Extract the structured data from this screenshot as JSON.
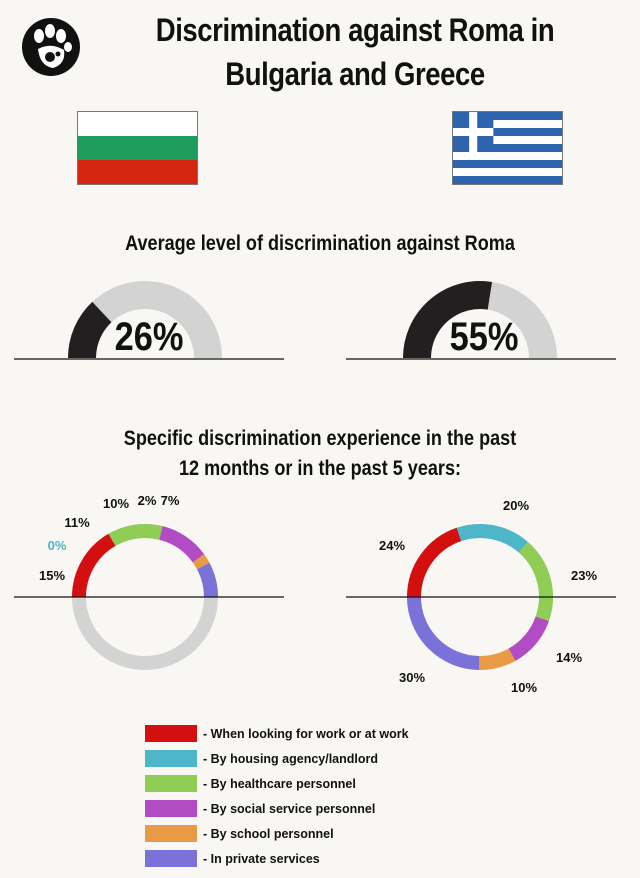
{
  "title_lines": [
    "Discrimination against Roma in",
    "Bulgaria and Greece"
  ],
  "logo": {
    "icon": "hands-logo-icon"
  },
  "flags": [
    {
      "name": "bulgaria-flag-icon",
      "colors": [
        "#ffffff",
        "#1f9d5c",
        "#d62612"
      ]
    },
    {
      "name": "greece-flag-icon",
      "colors": [
        "#2e63ad",
        "#ffffff"
      ]
    }
  ],
  "average_section": {
    "title": "Average level of discrimination against Roma"
  },
  "specific_section": {
    "title_lines": [
      "Specific discrimination experience in the past",
      "12 months or in the past 5 years:"
    ]
  },
  "legend": [
    {
      "label": "- When looking for work or at work",
      "color": "#d40f10"
    },
    {
      "label": "- By housing agency/landlord",
      "color": "#4db6c9"
    },
    {
      "label": "- By healthcare personnel",
      "color": "#8fcd55"
    },
    {
      "label": "- By social service personnel",
      "color": "#b24cc4"
    },
    {
      "label": "- By school personnel",
      "color": "#e89a44"
    },
    {
      "label": "- In private services",
      "color": "#7a72d8"
    }
  ],
  "chart_data": [
    {
      "type": "gauge",
      "country": "Bulgaria",
      "value": 26,
      "value_label": "26%",
      "fill_color": "#231f20",
      "track_color": "#d3d3d3"
    },
    {
      "type": "gauge",
      "country": "Greece",
      "value": 55,
      "value_label": "55%",
      "fill_color": "#231f20",
      "track_color": "#d3d3d3"
    },
    {
      "type": "donut",
      "country": "Bulgaria",
      "categories": [
        "When looking for work or at work",
        "By housing agency/landlord",
        "By healthcare personnel",
        "By social service personnel",
        "By school personnel",
        "In private services"
      ],
      "values": [
        15,
        0,
        11,
        10,
        2,
        7
      ],
      "labels": [
        "15%",
        "0%",
        "11%",
        "10%",
        "2%",
        "7%"
      ],
      "label_colors": [
        "#111111",
        "#4db6c9",
        "#111111",
        "#111111",
        "#111111",
        "#111111"
      ],
      "remainder_color": "#d3d3d3"
    },
    {
      "type": "donut",
      "country": "Greece",
      "categories": [
        "When looking for work or at work",
        "By housing agency/landlord",
        "By healthcare personnel",
        "By social service personnel",
        "By school personnel",
        "In private services"
      ],
      "values": [
        24,
        20,
        23,
        14,
        10,
        30
      ],
      "labels": [
        "24%",
        "20%",
        "23%",
        "14%",
        "10%",
        "30%"
      ],
      "label_colors": [
        "#111111",
        "#111111",
        "#111111",
        "#111111",
        "#111111",
        "#111111"
      ],
      "remainder_color": "#d3d3d3"
    }
  ]
}
